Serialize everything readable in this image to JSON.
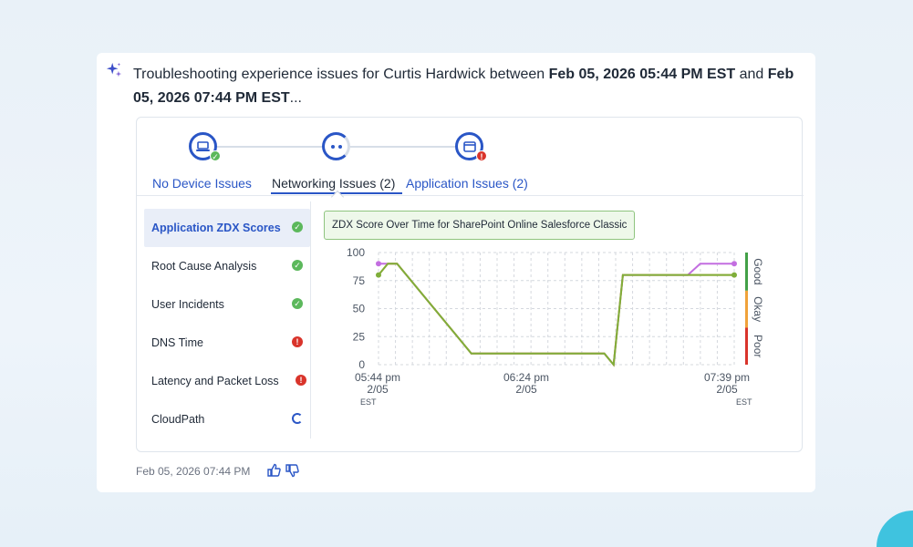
{
  "header": {
    "text_prefix": "Troubleshooting experience issues for Curtis Hardwick between ",
    "start": "Feb 05, 2026 05:44 PM EST",
    "mid": " and ",
    "end": "Feb 05, 2026 07:44 PM EST",
    "suffix": "..."
  },
  "stepper": [
    {
      "icon": "laptop-icon",
      "status": "ok"
    },
    {
      "icon": "loading-icon",
      "status": "pending"
    },
    {
      "icon": "browser-window-icon",
      "status": "error"
    }
  ],
  "tabs": [
    {
      "label": "No Device Issues",
      "active": false
    },
    {
      "label": "Networking Issues (2)",
      "active": true
    },
    {
      "label": "Application Issues (2)",
      "active": false
    }
  ],
  "sidebar": {
    "items": [
      {
        "label": "Application ZDX Scores",
        "status": "ok",
        "selected": true
      },
      {
        "label": "Root Cause Analysis",
        "status": "ok",
        "selected": false
      },
      {
        "label": "User Incidents",
        "status": "ok",
        "selected": false
      },
      {
        "label": "DNS Time",
        "status": "error",
        "selected": false
      },
      {
        "label": "Latency and Packet Loss",
        "status": "error",
        "selected": false
      },
      {
        "label": "CloudPath",
        "status": "pending",
        "selected": false
      }
    ]
  },
  "chart_data": {
    "type": "line",
    "title": "ZDX Score Over Time for SharePoint Online Salesforce Classic",
    "ylim": [
      0,
      100
    ],
    "yticks": [
      "100",
      "75",
      "50",
      "25",
      "0"
    ],
    "x_tick_labels": [
      {
        "time": "05:44 pm",
        "date": "2/05"
      },
      {
        "time": "06:24 pm",
        "date": "2/05"
      },
      {
        "time": "07:39 pm",
        "date": "2/05"
      }
    ],
    "timezone_left": "EST",
    "timezone_right": "EST",
    "x_minutes": [
      0,
      3,
      6,
      30,
      70,
      73,
      76,
      79,
      85,
      100,
      104,
      115
    ],
    "series": [
      {
        "color": "#c36ee0",
        "values": [
          90,
          90,
          90,
          10,
          10,
          10,
          0,
          80,
          80,
          80,
          90,
          90
        ]
      },
      {
        "color": "#e2942e",
        "values": [
          80,
          90,
          90,
          10,
          10,
          10,
          0,
          80,
          80,
          80,
          80,
          80
        ]
      },
      {
        "color": "#7fae3a",
        "values": [
          80,
          90,
          90,
          10,
          10,
          10,
          0,
          80,
          80,
          80,
          80,
          80
        ]
      }
    ],
    "zones": [
      {
        "label": "Good",
        "color": "#43a047",
        "from": 66,
        "to": 100
      },
      {
        "label": "Okay",
        "color": "#f0a23a",
        "from": 33,
        "to": 66
      },
      {
        "label": "Poor",
        "color": "#d9342b",
        "from": 0,
        "to": 33
      }
    ],
    "grid": true
  },
  "footer": {
    "timestamp": "Feb 05, 2026 07:44 PM",
    "thumbs_up_icon": "thumbs-up-icon",
    "thumbs_down_icon": "thumbs-down-icon"
  },
  "colors": {
    "accent": "#2a56c6",
    "ok": "#5cb85c",
    "error": "#d9342b"
  }
}
